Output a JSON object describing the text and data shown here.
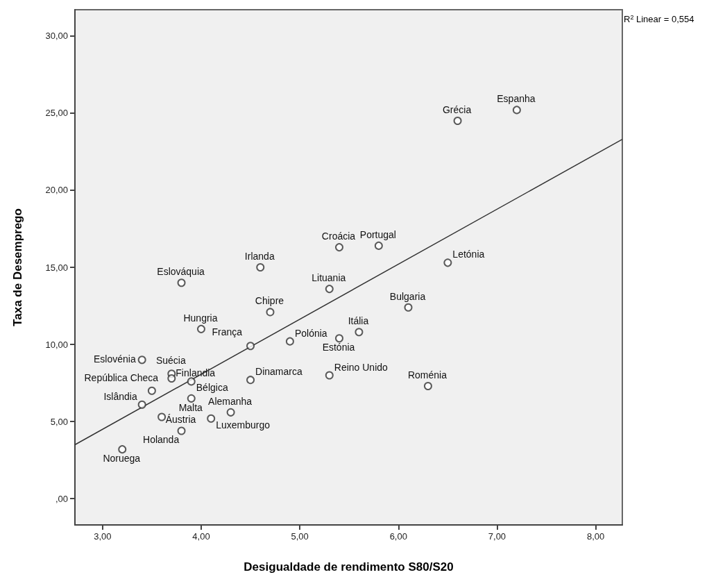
{
  "chart_data": {
    "type": "scatter",
    "xlabel": "Desigualdade de rendimento S80/S20",
    "ylabel": "Taxa de Desemprego",
    "xlim": [
      2.72,
      8.27
    ],
    "ylim": [
      -1.7,
      31.7
    ],
    "xticks": [
      {
        "value": 3,
        "label": "3,00"
      },
      {
        "value": 4,
        "label": "4,00"
      },
      {
        "value": 5,
        "label": "5,00"
      },
      {
        "value": 6,
        "label": "6,00"
      },
      {
        "value": 7,
        "label": "7,00"
      },
      {
        "value": 8,
        "label": "8,00"
      }
    ],
    "yticks": [
      {
        "value": 0,
        "label": ",00"
      },
      {
        "value": 5,
        "label": "5,00"
      },
      {
        "value": 10,
        "label": "10,00"
      },
      {
        "value": 15,
        "label": "15,00"
      },
      {
        "value": 20,
        "label": "20,00"
      },
      {
        "value": 25,
        "label": "25,00"
      },
      {
        "value": 30,
        "label": "30,00"
      }
    ],
    "grid": false,
    "marker": "circle",
    "series": [
      {
        "type": "scatter",
        "color": "#333333",
        "x": [
          7.2,
          6.6,
          6.5,
          5.4,
          5.8,
          4.6,
          3.8,
          5.3,
          6.1,
          4.7,
          4.0,
          5.6,
          5.4,
          4.9,
          4.5,
          3.4,
          3.7,
          3.7,
          3.4,
          3.5,
          3.9,
          3.9,
          4.1,
          4.3,
          3.8,
          3.6,
          3.2,
          4.5,
          5.3,
          6.3
        ],
        "values": [
          25.2,
          24.5,
          15.3,
          16.3,
          16.4,
          15.0,
          14.0,
          13.6,
          12.4,
          12.1,
          11.0,
          10.8,
          10.4,
          10.2,
          9.9,
          9.0,
          8.1,
          7.8,
          6.1,
          7.0,
          7.6,
          6.5,
          5.2,
          5.6,
          4.4,
          5.3,
          3.2,
          7.7,
          8.0,
          7.3
        ]
      },
      {
        "type": "line",
        "color": "#333333",
        "marker": "none",
        "x": [
          2.72,
          8.27
        ],
        "values": [
          3.5,
          23.3
        ]
      }
    ],
    "annotations": [
      {
        "text": "Espanha",
        "x": 7.2,
        "y": 25.2
      },
      {
        "text": "Grécia",
        "x": 6.6,
        "y": 24.5
      },
      {
        "text": "Letónia",
        "x": 6.5,
        "y": 15.3
      },
      {
        "text": "Croácia",
        "x": 5.4,
        "y": 16.3
      },
      {
        "text": "Portugal",
        "x": 5.8,
        "y": 16.4
      },
      {
        "text": "Irlanda",
        "x": 4.6,
        "y": 15.0
      },
      {
        "text": "Eslováquia",
        "x": 3.8,
        "y": 14.0
      },
      {
        "text": "Lituania",
        "x": 5.3,
        "y": 13.6
      },
      {
        "text": "Bulgaria",
        "x": 6.1,
        "y": 12.4
      },
      {
        "text": "Chipre",
        "x": 4.7,
        "y": 12.1
      },
      {
        "text": "Hungria",
        "x": 4.0,
        "y": 11.0
      },
      {
        "text": "Itália",
        "x": 5.6,
        "y": 10.8
      },
      {
        "text": "Estónia",
        "x": 5.4,
        "y": 10.4
      },
      {
        "text": "Polónia",
        "x": 4.9,
        "y": 10.2
      },
      {
        "text": "França",
        "x": 4.5,
        "y": 9.9
      },
      {
        "text": "Eslovénia",
        "x": 3.4,
        "y": 9.0
      },
      {
        "text": "Finlandia",
        "x": 3.7,
        "y": 8.1
      },
      {
        "text": "Suécia",
        "x": 3.7,
        "y": 7.8
      },
      {
        "text": "Islândia",
        "x": 3.4,
        "y": 6.1
      },
      {
        "text": "República Checa",
        "x": 3.5,
        "y": 7.0
      },
      {
        "text": "Bélgica",
        "x": 3.9,
        "y": 7.6
      },
      {
        "text": "Malta",
        "x": 3.9,
        "y": 6.5
      },
      {
        "text": "Luxemburgo",
        "x": 4.1,
        "y": 5.2
      },
      {
        "text": "Alemanha",
        "x": 4.3,
        "y": 5.6
      },
      {
        "text": "Áustria",
        "x": 3.8,
        "y": 4.4
      },
      {
        "text": "Holanda",
        "x": 3.6,
        "y": 5.3
      },
      {
        "text": "Noruega",
        "x": 3.2,
        "y": 3.2
      },
      {
        "text": "Dinamarca",
        "x": 4.5,
        "y": 7.7
      },
      {
        "text": "Reino Unido",
        "x": 5.3,
        "y": 8.0
      },
      {
        "text": "Roménia",
        "x": 6.3,
        "y": 7.3
      },
      "R$^{2}$ Linear = 0,554"
    ]
  }
}
